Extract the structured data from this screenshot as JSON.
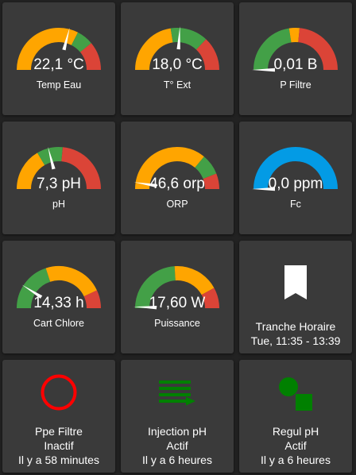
{
  "colors": {
    "orange": "#ffa500",
    "green": "#43a047",
    "red": "#db4437",
    "blue": "#039be5",
    "needle": "#ffffff",
    "tile_bg": "#3a3a3a",
    "page_bg": "#222222"
  },
  "gauges": [
    {
      "label": "Temp Eau",
      "value": "22,1 °C",
      "needle_fraction": 0.58,
      "segments": [
        {
          "color": "orange",
          "from": 0,
          "to": 0.65
        },
        {
          "color": "green",
          "from": 0.65,
          "to": 0.78
        },
        {
          "color": "red",
          "from": 0.78,
          "to": 1
        }
      ]
    },
    {
      "label": "T° Ext",
      "value": "18,0 °C",
      "needle_fraction": 0.52,
      "segments": [
        {
          "color": "orange",
          "from": 0,
          "to": 0.45
        },
        {
          "color": "green",
          "from": 0.45,
          "to": 0.74
        },
        {
          "color": "red",
          "from": 0.74,
          "to": 1
        }
      ]
    },
    {
      "label": "P Filtre",
      "value": "0,01 B",
      "needle_fraction": 0.0,
      "segments": [
        {
          "color": "green",
          "from": 0,
          "to": 0.45
        },
        {
          "color": "orange",
          "from": 0.45,
          "to": 0.53
        },
        {
          "color": "red",
          "from": 0.53,
          "to": 1
        }
      ]
    },
    {
      "label": "pH",
      "value": "7,3 pH",
      "needle_fraction": 0.42,
      "segments": [
        {
          "color": "orange",
          "from": 0,
          "to": 0.33
        },
        {
          "color": "green",
          "from": 0.33,
          "to": 0.53
        },
        {
          "color": "red",
          "from": 0.53,
          "to": 1
        }
      ]
    },
    {
      "label": "ORP",
      "value": "46,6 orp",
      "needle_fraction": 0.05,
      "segments": [
        {
          "color": "orange",
          "from": 0,
          "to": 0.72
        },
        {
          "color": "green",
          "from": 0.72,
          "to": 0.88
        },
        {
          "color": "red",
          "from": 0.88,
          "to": 1
        }
      ]
    },
    {
      "label": "Fc",
      "value": "0,0 ppm",
      "needle_fraction": 0.0,
      "segments": [
        {
          "color": "blue",
          "from": 0,
          "to": 1
        }
      ]
    },
    {
      "label": "Cart Chlore",
      "value": "14,33 h",
      "needle_fraction": 0.18,
      "segments": [
        {
          "color": "green",
          "from": 0,
          "to": 0.4
        },
        {
          "color": "orange",
          "from": 0.4,
          "to": 0.86
        },
        {
          "color": "red",
          "from": 0.86,
          "to": 1
        }
      ]
    },
    {
      "label": "Puissance",
      "value": "17,60 W",
      "needle_fraction": 0.01,
      "segments": [
        {
          "color": "green",
          "from": 0,
          "to": 0.48
        },
        {
          "color": "orange",
          "from": 0.48,
          "to": 0.84
        },
        {
          "color": "red",
          "from": 0.84,
          "to": 1
        }
      ]
    }
  ],
  "tranche": {
    "icon": "bookmark-icon",
    "title": "Tranche Horaire",
    "subtitle": "Tue, 11:35 - 13:39"
  },
  "status_tiles": [
    {
      "icon": "circle-outline-icon",
      "icon_color": "#ff0000",
      "name": "Ppe Filtre",
      "state": "Inactif",
      "time": "Il y a 58 minutes"
    },
    {
      "icon": "injection-lines-icon",
      "icon_color": "#008000",
      "name": "Injection pH",
      "state": "Actif",
      "time": "Il y a 6 heures"
    },
    {
      "icon": "shapes-icon",
      "icon_color": "#008000",
      "name": "Regul pH",
      "state": "Actif",
      "time": "Il y a 6 heures"
    }
  ]
}
